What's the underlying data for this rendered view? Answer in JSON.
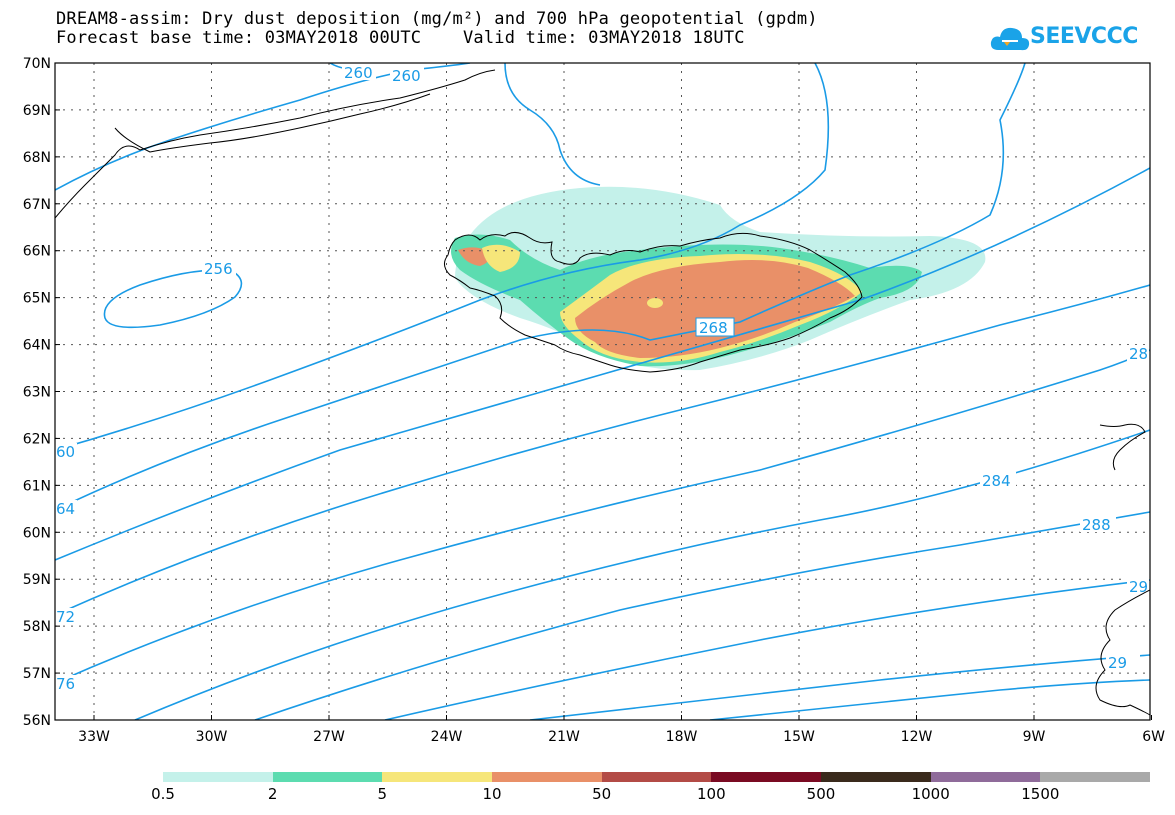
{
  "title": {
    "line1": "DREAM8-assim: Dry dust deposition (mg/m²) and 700 hPa geopotential (gpdm)",
    "line2": "Forecast base time: 03MAY2018 00UTC    Valid time: 03MAY2018 18UTC"
  },
  "logo": {
    "text": "SEEVCCC",
    "icon": "cloud-icon"
  },
  "map": {
    "lat_labels": [
      "70N",
      "69N",
      "68N",
      "67N",
      "66N",
      "65N",
      "64N",
      "63N",
      "62N",
      "61N",
      "60N",
      "59N",
      "58N",
      "57N",
      "56N"
    ],
    "lon_labels": [
      "33W",
      "30W",
      "27W",
      "24W",
      "21W",
      "18W",
      "15W",
      "12W",
      "9W",
      "6W"
    ],
    "contour_labels": [
      "260",
      "260",
      "256",
      "268",
      "284",
      "288",
      "28",
      "60",
      "64",
      "72",
      "76",
      "29",
      "29"
    ],
    "contour_color": "#1a9be6",
    "land_outline_color": "#000000"
  },
  "colorbar": {
    "labels": [
      "0.5",
      "2",
      "5",
      "10",
      "50",
      "100",
      "500",
      "1000",
      "1500"
    ],
    "colors": [
      "#c4f1ea",
      "#5cdcb0",
      "#f6e67a",
      "#e99068",
      "#b34b46",
      "#7a0a22",
      "#3a2a1c",
      "#8f6b9a",
      "#a9a9a9"
    ]
  }
}
